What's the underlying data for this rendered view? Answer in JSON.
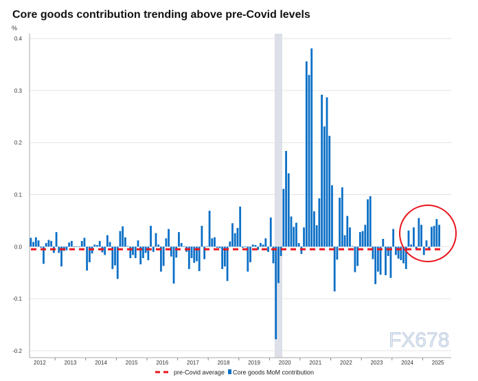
{
  "chart_data": {
    "type": "bar",
    "title": "Core goods contribution trending above pre-Covid levels",
    "ylabel": "%",
    "xlabel": "",
    "ylim": [
      -0.2,
      0.4
    ],
    "yticks": [
      "0.4",
      "0.3",
      "0.2",
      "0.1",
      "0.0",
      "-0.1",
      "-0.2"
    ],
    "ytick_values": [
      0.4,
      0.3,
      0.2,
      0.1,
      0.0,
      -0.1,
      -0.2
    ],
    "xticks": [
      "2012",
      "2013",
      "2014",
      "2015",
      "2016",
      "2017",
      "2018",
      "2019",
      "2020",
      "2021",
      "2022",
      "2023",
      "2024",
      "2025"
    ],
    "grid": "horizontal",
    "legend_placement": "bottom",
    "start_month": "2012-03",
    "shaded_period": [
      "2020-03",
      "2020-05"
    ],
    "series": [
      {
        "name": "Core goods MoM contribution",
        "kind": "bar",
        "color": "#0b6fc6",
        "values": [
          0.017,
          0.009,
          0.018,
          0.012,
          -0.002,
          -0.033,
          0.007,
          0.013,
          0.011,
          -0.012,
          0.028,
          -0.012,
          -0.038,
          -0.008,
          -0.007,
          0.008,
          0.011,
          -0.001,
          0.0,
          0.0,
          0.011,
          0.017,
          -0.046,
          -0.03,
          -0.013,
          0.004,
          0.003,
          0.011,
          -0.011,
          -0.016,
          0.022,
          0.009,
          -0.043,
          -0.036,
          -0.062,
          0.03,
          0.039,
          0.018,
          0.001,
          -0.022,
          -0.016,
          -0.022,
          0.012,
          -0.034,
          -0.022,
          -0.012,
          -0.026,
          0.04,
          -0.01,
          0.026,
          0.004,
          -0.048,
          -0.037,
          0.016,
          0.034,
          -0.019,
          -0.071,
          -0.021,
          0.028,
          0.007,
          0.001,
          -0.01,
          -0.043,
          -0.022,
          -0.031,
          -0.028,
          -0.047,
          0.04,
          -0.024,
          0.001,
          0.069,
          0.016,
          0.018,
          -0.002,
          -0.003,
          -0.043,
          -0.038,
          -0.066,
          0.01,
          0.045,
          0.026,
          0.036,
          0.077,
          -0.002,
          -0.001,
          -0.048,
          -0.03,
          0.004,
          0.003,
          -0.006,
          0.007,
          0.004,
          0.016,
          -0.01,
          0.056,
          -0.032,
          -0.178,
          -0.07,
          -0.018,
          0.111,
          0.184,
          0.141,
          0.058,
          0.038,
          0.046,
          0.007,
          -0.014,
          0.037,
          0.356,
          0.33,
          0.381,
          0.068,
          0.041,
          0.093,
          0.292,
          0.231,
          0.287,
          0.213,
          0.118,
          -0.086,
          -0.025,
          0.094,
          0.114,
          0.022,
          0.059,
          0.037,
          0.001,
          -0.049,
          -0.037,
          0.028,
          0.03,
          0.042,
          0.091,
          0.097,
          -0.024,
          -0.072,
          -0.048,
          -0.054,
          0.015,
          -0.055,
          -0.018,
          -0.06,
          0.034,
          -0.016,
          -0.023,
          -0.026,
          -0.032,
          -0.043,
          0.031,
          0.004,
          0.037,
          -0.005,
          0.055,
          0.042,
          -0.016,
          0.012,
          -0.007,
          0.038,
          0.04,
          0.053,
          0.042
        ]
      },
      {
        "name": "pre-Covid average",
        "kind": "dashed-line",
        "color": "#e8141b",
        "value": -0.005
      }
    ],
    "annotation": {
      "type": "circle",
      "color": "#e8141b",
      "around": "2024-2025 bars"
    },
    "watermark": "FX678"
  }
}
